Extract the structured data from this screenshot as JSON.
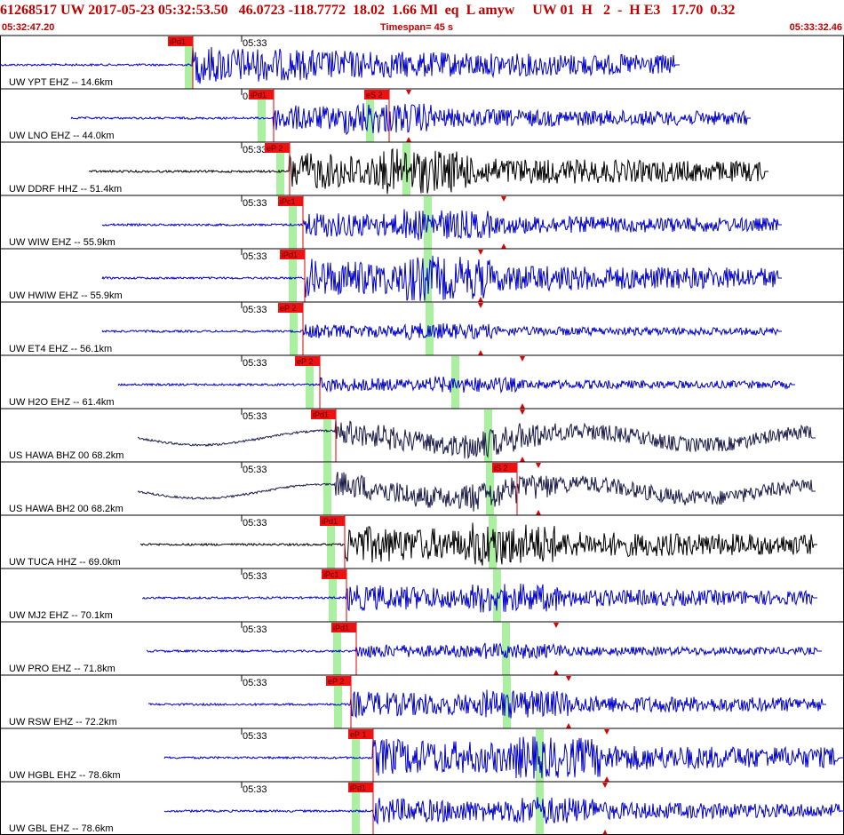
{
  "header": {
    "event_line": "61268517 UW 2017-05-23 05:32:53.50   46.0723 -118.7772  18.02  1.66 Ml  eq  L amyw     UW 01  H   2  -  H E3   17.70  0.32",
    "start_time": "05:32:47.20",
    "timespan": "Timespan=  45 s",
    "end_time": "05:33:32.46"
  },
  "colors": {
    "header_text": "#c00000",
    "pick_fill": "#ee1111",
    "pick_line": "#dd0000",
    "predicted_band": "#aaf0a0",
    "wave_blue": "#0000cc",
    "wave_black": "#000000",
    "wave_navy": "#1a1a4a",
    "divider": "#000000"
  },
  "minute_label": "05:33",
  "traces": [
    {
      "label": "UW YPT EHZ -- 14.6km",
      "color": "blue",
      "pick": "iPd1",
      "onset": 217,
      "amp": "high",
      "lp": false,
      "green": [
        208
      ],
      "markers": [],
      "start": 0,
      "end": 765
    },
    {
      "label": "UW LNO EHZ -- 44.0km",
      "color": "blue",
      "pick": "iPd1",
      "onset": 308,
      "amp": "medium",
      "lp": false,
      "green": [
        290,
        412
      ],
      "spick": {
        "label": "eS 2",
        "x": 438
      },
      "markers": [
        460
      ],
      "start": 80,
      "end": 845
    },
    {
      "label": "UW DDRF HHZ -- 51.4km",
      "color": "black",
      "pick": "eP 2",
      "onset": 326,
      "amp": "high",
      "lp": false,
      "green": [
        311,
        453
      ],
      "markers": [],
      "start": 100,
      "end": 865
    },
    {
      "label": "UW WIW EHZ -- 55.9km",
      "color": "blue",
      "pick": "iPc1",
      "onset": 341,
      "amp": "medium",
      "lp": false,
      "green": [
        325,
        477
      ],
      "markers": [
        567
      ],
      "start": 115,
      "end": 880
    },
    {
      "label": "UW HWIW EHZ -- 55.9km",
      "color": "blue",
      "pick": "iPd1",
      "onset": 343,
      "amp": "high",
      "lp": false,
      "green": [
        325,
        477
      ],
      "markers": [
        541
      ],
      "start": 115,
      "end": 880
    },
    {
      "label": "UW ET4 EHZ -- 56.1km",
      "color": "blue",
      "pick": "eP 2",
      "onset": 341,
      "amp": "low",
      "lp": false,
      "green": [
        326,
        479
      ],
      "markers": [
        541
      ],
      "start": 115,
      "end": 880
    },
    {
      "label": "UW H2O EHZ -- 61.4km",
      "color": "blue",
      "pick": "eP 2",
      "onset": 360,
      "amp": "low",
      "lp": false,
      "green": [
        344,
        508
      ],
      "markers": [
        588
      ],
      "start": 133,
      "end": 895
    },
    {
      "label": "US HAWA BHZ 00 68.2km",
      "color": "navy",
      "pick": "iPd1",
      "onset": 378,
      "amp": "medium",
      "lp": true,
      "green": [
        364,
        545
      ],
      "markers": [
        588
      ],
      "start": 155,
      "end": 918
    },
    {
      "label": "US HAWA BH2 00 68.2km",
      "color": "navy",
      "pick": "",
      "onset": 378,
      "amp": "medium",
      "lp": true,
      "green": [
        364,
        547
      ],
      "spick": {
        "label": "iS 2",
        "x": 582
      },
      "markers": [
        606
      ],
      "start": 155,
      "end": 918
    },
    {
      "label": "UW TUCA HHZ -- 69.0km",
      "color": "black",
      "pick": "iPd1",
      "onset": 388,
      "amp": "high",
      "lp": false,
      "green": [
        368,
        550
      ],
      "markers": [],
      "start": 158,
      "end": 920
    },
    {
      "label": "UW MJ2 EHZ -- 70.1km",
      "color": "blue",
      "pick": "iPc1",
      "onset": 390,
      "amp": "medium",
      "lp": false,
      "green": [
        370,
        555
      ],
      "markers": [],
      "start": 160,
      "end": 920
    },
    {
      "label": "UW PRO EHZ -- 71.8km",
      "color": "blue",
      "pick": "iPd1",
      "onset": 401,
      "amp": "low",
      "lp": false,
      "green": [
        375,
        565
      ],
      "markers": [
        626
      ],
      "start": 165,
      "end": 925
    },
    {
      "label": "UW RSW EHZ -- 72.2km",
      "color": "blue",
      "pick": "eP 2",
      "onset": 395,
      "amp": "medium",
      "lp": false,
      "green": [
        376,
        566
      ],
      "markers": [
        640
      ],
      "start": 167,
      "end": 930
    },
    {
      "label": "UW HGBL EHZ -- 78.6km",
      "color": "blue",
      "pick": "eP 1",
      "onset": 420,
      "amp": "high",
      "lp": false,
      "green": [
        396,
        603
      ],
      "markers": [
        683
      ],
      "start": 185,
      "end": 950
    },
    {
      "label": "UW GBL EHZ -- 78.6km",
      "color": "blue",
      "pick": "iPd1",
      "onset": 420,
      "amp": "medium",
      "lp": false,
      "green": [
        396,
        603
      ],
      "markers": [
        681
      ],
      "start": 185,
      "end": 950
    }
  ]
}
